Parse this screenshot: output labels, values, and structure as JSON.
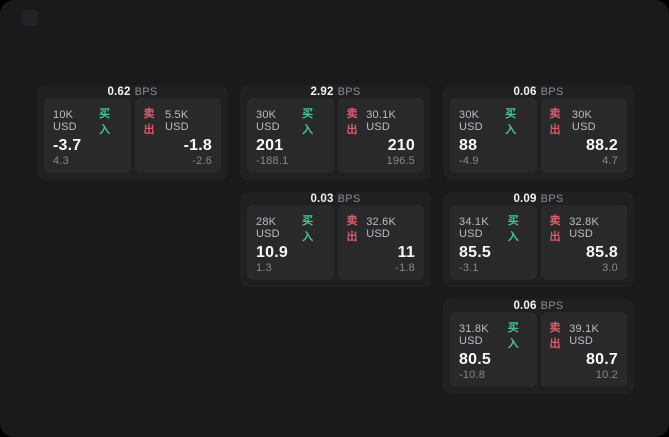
{
  "page": {
    "background_outer": "#000000",
    "background_panel": "#1a1a1c"
  },
  "labels": {
    "bps_unit": "BPS",
    "buy": "买入",
    "sell": "卖出"
  },
  "colors": {
    "buy_green": "#42c98b",
    "sell_red": "#df5a6c",
    "value_white": "#f7f7f8",
    "amount_gray": "#bdbdc3",
    "delta_gray": "#87878c",
    "card_bg": "#202023",
    "side_panel_bg": "#29292c"
  },
  "cards": [
    {
      "bps": "0.62",
      "grid": {
        "row": 1,
        "col": 1
      },
      "buy": {
        "amount": "10K USD",
        "value": "-3.7",
        "delta": "4.3"
      },
      "sell": {
        "amount": "5.5K USD",
        "value": "-1.8",
        "delta": "-2.6"
      }
    },
    {
      "bps": "2.92",
      "grid": {
        "row": 1,
        "col": 2
      },
      "buy": {
        "amount": "30K USD",
        "value": "201",
        "delta": "-188.1"
      },
      "sell": {
        "amount": "30.1K USD",
        "value": "210",
        "delta": "196.5"
      }
    },
    {
      "bps": "0.06",
      "grid": {
        "row": 1,
        "col": 3
      },
      "buy": {
        "amount": "30K USD",
        "value": "88",
        "delta": "-4.9"
      },
      "sell": {
        "amount": "30K USD",
        "value": "88.2",
        "delta": "4.7"
      }
    },
    {
      "bps": "0.03",
      "grid": {
        "row": 2,
        "col": 2
      },
      "buy": {
        "amount": "28K USD",
        "value": "10.9",
        "delta": "1.3"
      },
      "sell": {
        "amount": "32.6K USD",
        "value": "11",
        "delta": "-1.8"
      }
    },
    {
      "bps": "0.09",
      "grid": {
        "row": 2,
        "col": 3
      },
      "buy": {
        "amount": "34.1K USD",
        "value": "85.5",
        "delta": "-3.1"
      },
      "sell": {
        "amount": "32.8K USD",
        "value": "85.8",
        "delta": "3.0"
      }
    },
    {
      "bps": "0.06",
      "grid": {
        "row": 3,
        "col": 3
      },
      "buy": {
        "amount": "31.8K USD",
        "value": "80.5",
        "delta": "-10.8"
      },
      "sell": {
        "amount": "39.1K USD",
        "value": "80.7",
        "delta": "10.2"
      }
    }
  ]
}
